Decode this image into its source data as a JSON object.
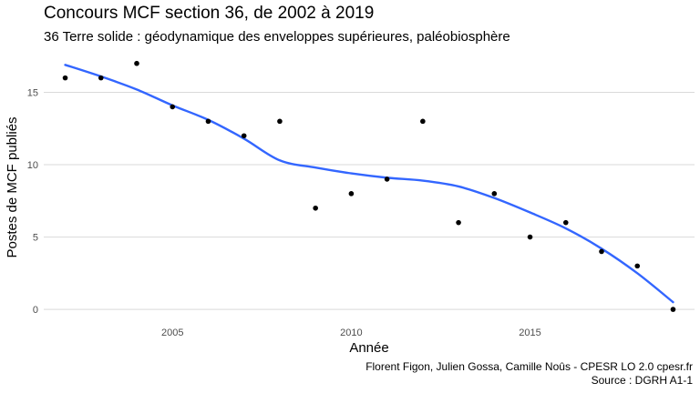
{
  "chart_data": {
    "type": "scatter",
    "title": "Concours MCF section 36, de 2002 à 2019",
    "subtitle": "36 Terre solide : géodynamique des enveloppes supérieures, paléobiosphère",
    "xlabel": "Année",
    "ylabel": "Postes de MCF publiés",
    "xlim": [
      2001.4,
      2019.6
    ],
    "ylim": [
      -1,
      17.8
    ],
    "x_ticks": [
      2005,
      2010,
      2015
    ],
    "y_ticks": [
      0,
      5,
      10,
      15
    ],
    "grid": "horizontal major lines",
    "legend": "none",
    "points": [
      {
        "x": 2002,
        "y": 16
      },
      {
        "x": 2003,
        "y": 16
      },
      {
        "x": 2004,
        "y": 17
      },
      {
        "x": 2005,
        "y": 14
      },
      {
        "x": 2006,
        "y": 13
      },
      {
        "x": 2007,
        "y": 12
      },
      {
        "x": 2008,
        "y": 13
      },
      {
        "x": 2009,
        "y": 7
      },
      {
        "x": 2010,
        "y": 8
      },
      {
        "x": 2011,
        "y": 9
      },
      {
        "x": 2012,
        "y": 13
      },
      {
        "x": 2013,
        "y": 6
      },
      {
        "x": 2014,
        "y": 8
      },
      {
        "x": 2015,
        "y": 5
      },
      {
        "x": 2016,
        "y": 6
      },
      {
        "x": 2017,
        "y": 4
      },
      {
        "x": 2018,
        "y": 3
      },
      {
        "x": 2019,
        "y": 0
      }
    ],
    "trend": {
      "type": "loess smooth",
      "color": "#3366ff",
      "x": [
        2002,
        2003,
        2004,
        2005,
        2006,
        2007,
        2008,
        2009,
        2010,
        2011,
        2012,
        2013,
        2014,
        2015,
        2016,
        2017,
        2018,
        2019
      ],
      "y": [
        16.9,
        16.1,
        15.2,
        14.1,
        13.1,
        11.8,
        10.3,
        9.8,
        9.4,
        9.1,
        8.9,
        8.5,
        7.7,
        6.7,
        5.6,
        4.2,
        2.5,
        0.5
      ]
    },
    "point_color": "#000000",
    "grid_color": "#d9d9d9"
  },
  "caption": {
    "line1": "Florent Figon, Julien Gossa, Camille Noûs - CPESR LO 2.0 cpesr.fr",
    "line2": "Source : DGRH A1-1"
  }
}
